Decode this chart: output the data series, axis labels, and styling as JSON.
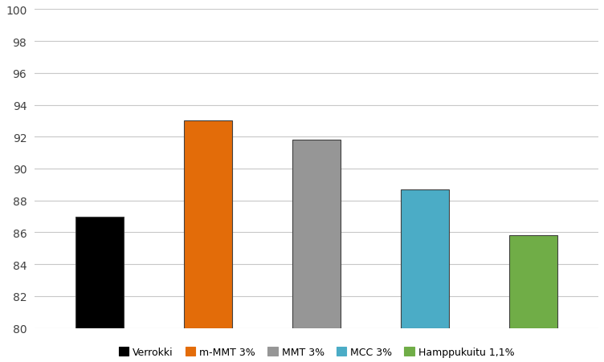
{
  "categories": [
    "Verrokki",
    "m-MMT 3%",
    "MMT 3%",
    "MCC 3%",
    "Hamppukuitu 1,1%"
  ],
  "values": [
    87.0,
    93.0,
    91.8,
    88.7,
    85.8
  ],
  "bar_colors": [
    "#000000",
    "#E36C09",
    "#969696",
    "#4BACC6",
    "#70AD47"
  ],
  "bar_edge_color": "#404040",
  "bar_edge_width": 0.8,
  "ylim": [
    80,
    100
  ],
  "yticks": [
    80,
    82,
    84,
    86,
    88,
    90,
    92,
    94,
    96,
    98,
    100
  ],
  "background_color": "#ffffff",
  "grid_color": "#c8c8c8",
  "legend_labels": [
    "Verrokki",
    "m-MMT 3%",
    "MMT 3%",
    "MCC 3%",
    "Hamppukuitu 1,1%"
  ],
  "bar_width": 0.45,
  "figsize": [
    7.52,
    4.52
  ],
  "dpi": 100
}
